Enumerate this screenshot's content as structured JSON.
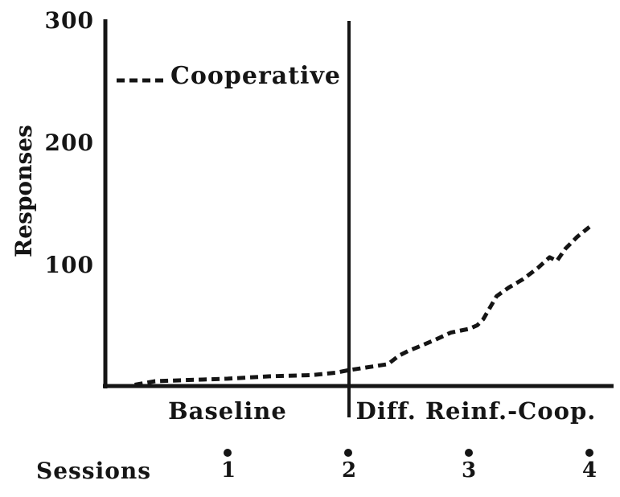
{
  "colors": {
    "ink": "#151515",
    "background": "#ffffff"
  },
  "chart_data": {
    "type": "line",
    "title": "",
    "ylabel": "Responses",
    "xlabel": "Sessions",
    "ylim": [
      0,
      300
    ],
    "y_ticks": [
      100,
      200,
      300
    ],
    "x_session_marks": [
      1,
      2,
      3,
      4
    ],
    "grid": false,
    "phase_divider_x": 2,
    "phases": [
      {
        "label": "Baseline",
        "x_range": [
          0,
          2
        ]
      },
      {
        "label": "Diff. Reinf.-Coop.",
        "x_range": [
          2,
          4.2
        ]
      }
    ],
    "legend": {
      "position": "top-left",
      "entries": [
        {
          "label": "Cooperative",
          "line_style": "dashed"
        }
      ]
    },
    "series": [
      {
        "name": "Cooperative",
        "style": "dashed",
        "x": [
          0.23,
          0.4,
          0.7,
          1.0,
          1.35,
          1.7,
          1.9,
          2.0,
          2.2,
          2.33,
          2.42,
          2.5,
          2.6,
          2.72,
          2.85,
          3.0,
          3.07,
          3.12,
          3.23,
          3.33,
          3.45,
          3.57,
          3.67,
          3.73,
          3.8,
          3.9,
          4.0
        ],
        "y": [
          1,
          4,
          5,
          6,
          8,
          9,
          11,
          13,
          16,
          18,
          25,
          29,
          33,
          38,
          44,
          47,
          50,
          55,
          74,
          81,
          88,
          97,
          106,
          103,
          113,
          123,
          131
        ]
      }
    ]
  }
}
